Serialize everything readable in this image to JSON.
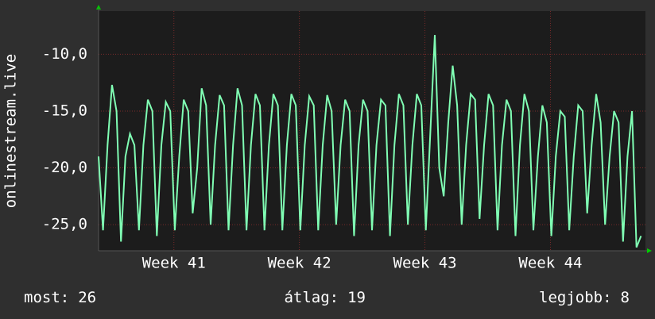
{
  "chart_data": {
    "type": "line",
    "ylabel": "onlinestream.live",
    "color": "#80ffb4",
    "grid": true,
    "ylim": [
      -27.3,
      -6.2
    ],
    "yticks": [
      {
        "value": -25,
        "label": "-25,0"
      },
      {
        "value": -20,
        "label": "-20,0"
      },
      {
        "value": -15,
        "label": "-15,0"
      },
      {
        "value": -10,
        "label": "-10,0"
      }
    ],
    "xlim": [
      0,
      30.5
    ],
    "xticks": [
      {
        "value": 4.2,
        "label": "Week 41"
      },
      {
        "value": 11.2,
        "label": "Week 42"
      },
      {
        "value": 18.2,
        "label": "Week 43"
      },
      {
        "value": 25.2,
        "label": "Week 44"
      }
    ],
    "x": [
      0,
      0.25,
      0.5,
      0.75,
      1,
      1.25,
      1.5,
      1.75,
      2,
      2.25,
      2.5,
      2.75,
      3,
      3.25,
      3.5,
      3.75,
      4,
      4.25,
      4.5,
      4.75,
      5,
      5.25,
      5.5,
      5.75,
      6,
      6.25,
      6.5,
      6.75,
      7,
      7.25,
      7.5,
      7.75,
      8,
      8.25,
      8.5,
      8.75,
      9,
      9.25,
      9.5,
      9.75,
      10,
      10.25,
      10.5,
      10.75,
      11,
      11.25,
      11.5,
      11.75,
      12,
      12.25,
      12.5,
      12.75,
      13,
      13.25,
      13.5,
      13.75,
      14,
      14.25,
      14.5,
      14.75,
      15,
      15.25,
      15.5,
      15.75,
      16,
      16.25,
      16.5,
      16.75,
      17,
      17.25,
      17.5,
      17.75,
      18,
      18.25,
      18.5,
      18.75,
      19,
      19.25,
      19.5,
      19.75,
      20,
      20.25,
      20.5,
      20.75,
      21,
      21.25,
      21.5,
      21.75,
      22,
      22.25,
      22.5,
      22.75,
      23,
      23.25,
      23.5,
      23.75,
      24,
      24.25,
      24.5,
      24.75,
      25,
      25.25,
      25.5,
      25.75,
      26,
      26.25,
      26.5,
      26.75,
      27,
      27.25,
      27.5,
      27.75,
      28,
      28.25,
      28.5,
      28.75,
      29,
      29.25,
      29.5,
      29.75,
      30,
      30.25
    ],
    "values": [
      -19,
      -25.5,
      -18,
      -12.7,
      -15,
      -26.5,
      -19,
      -17,
      -18,
      -25.5,
      -18,
      -14,
      -15,
      -26,
      -18,
      -14.2,
      -15,
      -25.5,
      -19,
      -14,
      -15,
      -24,
      -20,
      -13,
      -14.5,
      -25,
      -18,
      -13.6,
      -14.5,
      -25.5,
      -18,
      -13,
      -14.5,
      -25.5,
      -18,
      -13.5,
      -14.5,
      -25.5,
      -18,
      -13.5,
      -14.5,
      -25.5,
      -18,
      -13.5,
      -14.5,
      -25.5,
      -18,
      -13.7,
      -14.5,
      -25.5,
      -18,
      -13.6,
      -15,
      -25,
      -18,
      -14,
      -15,
      -26,
      -18,
      -14,
      -15,
      -25.5,
      -18,
      -14,
      -14.5,
      -26,
      -18,
      -13.5,
      -14.5,
      -25,
      -18,
      -13.5,
      -14.5,
      -25.5,
      -17,
      -8.3,
      -20,
      -22.5,
      -16,
      -11,
      -14.5,
      -25,
      -18,
      -13.5,
      -14,
      -24.5,
      -18,
      -13.5,
      -14.5,
      -25.5,
      -18,
      -14,
      -15,
      -26,
      -18,
      -13.5,
      -15,
      -25.5,
      -19,
      -14.5,
      -16,
      -26,
      -19,
      -15,
      -15.5,
      -25.5,
      -19,
      -14.5,
      -15,
      -24,
      -18,
      -13.5,
      -16,
      -25,
      -19,
      -15,
      -16,
      -26.5,
      -19,
      -15,
      -27,
      -26
    ],
    "stats": [
      {
        "label": "most:",
        "value": 26
      },
      {
        "label": "átlag:",
        "value": 19
      },
      {
        "label": "legjobb:",
        "value": 8
      }
    ]
  }
}
